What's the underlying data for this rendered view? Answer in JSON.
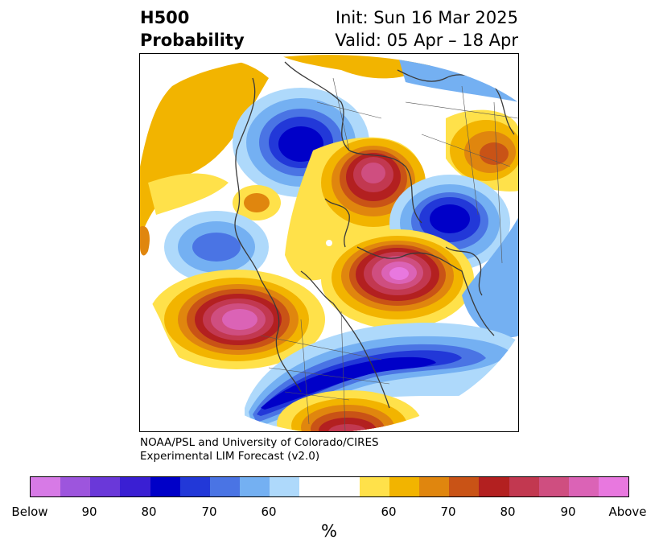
{
  "title": {
    "left_line1": "H500",
    "left_line2": "Probability",
    "right_line1": "Init: Sun 16 Mar 2025",
    "right_line2": "Valid: 05 Apr – 18 Apr"
  },
  "credit": {
    "line1": "NOAA/PSL and University of Colorado/CIRES",
    "line2": "Experimental LIM Forecast (v2.0)"
  },
  "colorbar": {
    "colors": [
      "#d77ae6",
      "#9d55dd",
      "#6a38d9",
      "#3a1fd3",
      "#0000c8",
      "#2238d8",
      "#4a74e4",
      "#74b0f2",
      "#aed9fb",
      "#ffffff",
      "#ffffff",
      "#ffe14a",
      "#f2b400",
      "#e0860e",
      "#c95316",
      "#b32020",
      "#c23850",
      "#cf4e80",
      "#db63b6",
      "#e878df"
    ],
    "ticks": [
      "Below",
      "90",
      "80",
      "70",
      "60",
      "60",
      "70",
      "80",
      "90",
      "Above"
    ],
    "unit": "%"
  }
}
